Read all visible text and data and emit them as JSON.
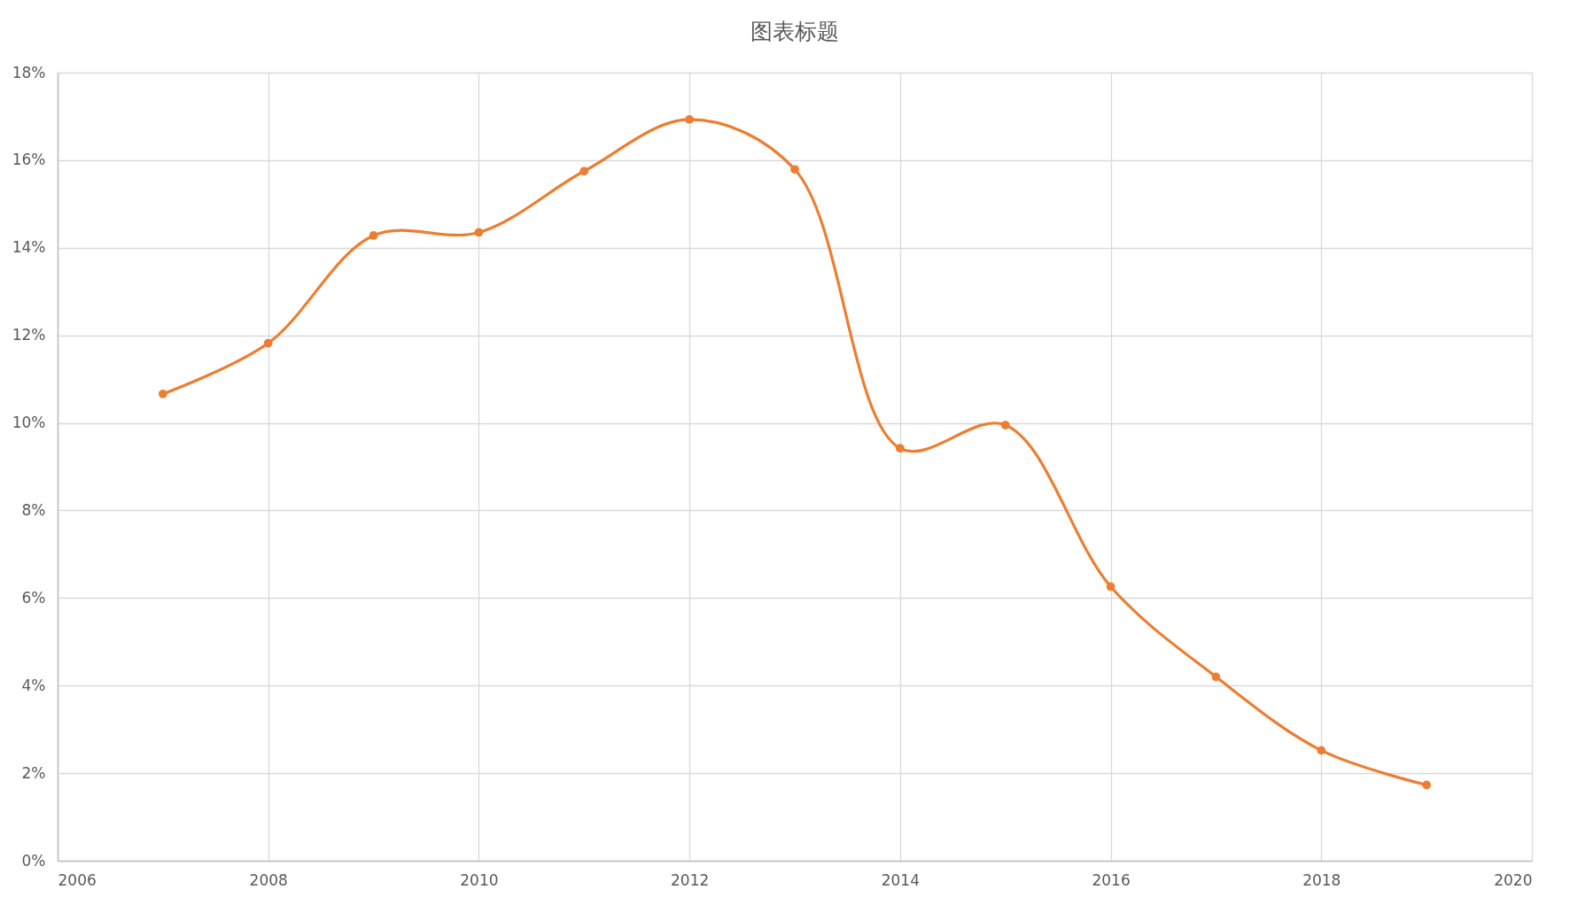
{
  "chart_data": {
    "type": "line",
    "title": "图表标题",
    "x": [
      2007,
      2008,
      2009,
      2010,
      2011,
      2012,
      2013,
      2014,
      2015,
      2016,
      2017,
      2018,
      2019
    ],
    "series": [
      {
        "color": "#ed7d31",
        "values": [
          10.66,
          11.82,
          14.28,
          14.35,
          15.75,
          16.93,
          15.79,
          9.42,
          9.95,
          6.26,
          4.2,
          2.52,
          1.73
        ]
      }
    ],
    "xlim": [
      2006,
      2020
    ],
    "xticks": [
      2006,
      2008,
      2010,
      2012,
      2014,
      2016,
      2018,
      2020
    ],
    "ylim": [
      0,
      18
    ],
    "yticks": [
      {
        "value": 0,
        "label": "0%"
      },
      {
        "value": 2,
        "label": "2%"
      },
      {
        "value": 4,
        "label": "4%"
      },
      {
        "value": 6,
        "label": "6%"
      },
      {
        "value": 8,
        "label": "8%"
      },
      {
        "value": 10,
        "label": "10%"
      },
      {
        "value": 12,
        "label": "12%"
      },
      {
        "value": 14,
        "label": "14%"
      },
      {
        "value": 16,
        "label": "16%"
      },
      {
        "value": 18,
        "label": "18%"
      }
    ],
    "grid": true,
    "marker": "circle",
    "line_style": "solid"
  }
}
